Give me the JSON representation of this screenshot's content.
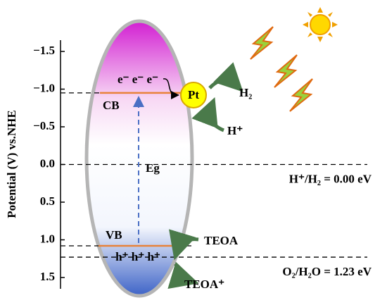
{
  "axis": {
    "label": "Potential (V) vs.NHE",
    "ylim": [
      -1.65,
      1.65
    ],
    "yticks": [
      {
        "value": -1.5,
        "label": "−1.5"
      },
      {
        "value": -1.0,
        "label": "−1.0"
      },
      {
        "value": -0.5,
        "label": "−0.5"
      },
      {
        "value": 0,
        "label": "0.0"
      },
      {
        "value": 0.5,
        "label": "0.5"
      },
      {
        "value": 1.0,
        "label": "1.0"
      },
      {
        "value": 1.5,
        "label": "1.5"
      }
    ]
  },
  "bands": {
    "cb": {
      "label": "CB",
      "value": -0.95
    },
    "vb": {
      "label": "VB",
      "value": 1.08
    },
    "gap": "Eg",
    "electrons": "e⁻ e⁻ e⁻",
    "holes": "h⁺ h⁺ h⁺"
  },
  "levels": [
    {
      "label": "H⁺/H₂ = 0.00 eV",
      "value": 0
    },
    {
      "label": "O₂/H₂O = 1.23 eV",
      "value": 1.23
    }
  ],
  "species": {
    "pt": "Pt",
    "h2": "H₂",
    "hplus": "H⁺",
    "teoa": "TEOA",
    "teoa_plus": "TEOA⁺"
  }
}
